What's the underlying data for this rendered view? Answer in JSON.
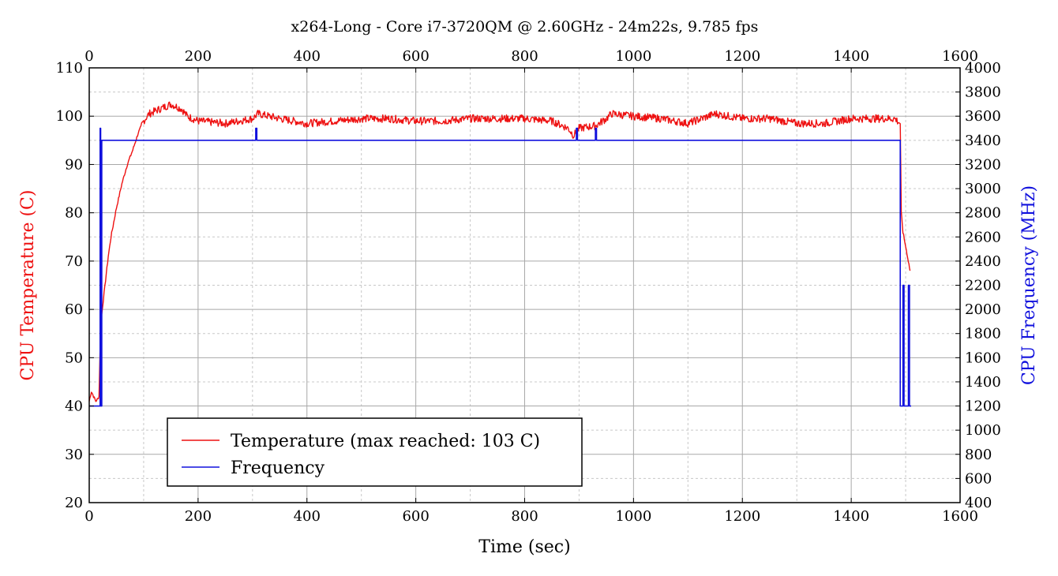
{
  "chart_data": {
    "type": "line",
    "title": "x264-Long - Core i7-3720QM @ 2.60GHz - 24m22s, 9.785 fps",
    "xlabel": "Time (sec)",
    "ylabel_left": "CPU Temperature (C)",
    "ylabel_right": "CPU Frequency (MHz)",
    "xlim": [
      0,
      1600
    ],
    "ylim_left": [
      20,
      110
    ],
    "ylim_right": [
      400,
      4000
    ],
    "x_ticks": [
      "0",
      "200",
      "400",
      "600",
      "800",
      "1000",
      "1200",
      "1400",
      "1600"
    ],
    "y_left_ticks": [
      "20",
      "30",
      "40",
      "50",
      "60",
      "70",
      "80",
      "90",
      "100",
      "110"
    ],
    "y_right_ticks": [
      "400",
      "600",
      "800",
      "1000",
      "1200",
      "1400",
      "1600",
      "1800",
      "2000",
      "2200",
      "2400",
      "2600",
      "2800",
      "3000",
      "3200",
      "3400",
      "3600",
      "3800",
      "4000"
    ],
    "grid": true,
    "legend_position": "bottom-left",
    "colors": {
      "temperature": "#ee1111",
      "frequency": "#1111dd"
    },
    "series": [
      {
        "name": "Temperature (max reached: 103 C)",
        "axis": "left",
        "x": [
          0,
          4,
          8,
          12,
          16,
          18,
          20,
          22,
          26,
          30,
          35,
          40,
          50,
          60,
          70,
          80,
          90,
          100,
          110,
          120,
          130,
          140,
          150,
          160,
          170,
          180,
          200,
          250,
          300,
          310,
          350,
          400,
          450,
          500,
          550,
          600,
          650,
          700,
          750,
          800,
          850,
          880,
          890,
          900,
          930,
          950,
          960,
          1000,
          1050,
          1100,
          1150,
          1200,
          1250,
          1300,
          1350,
          1400,
          1450,
          1480,
          1490,
          1492,
          1495,
          1500,
          1505,
          1508
        ],
        "y": [
          41,
          43,
          42,
          41,
          41.5,
          42,
          52,
          58,
          62,
          66,
          71,
          75,
          81,
          86,
          90,
          93,
          96.5,
          99,
          100.5,
          101,
          101.5,
          102,
          102.5,
          102,
          101.5,
          100,
          99,
          98.5,
          99.5,
          100.5,
          99.5,
          98.5,
          99,
          99.5,
          99.5,
          99,
          99,
          99.5,
          99.5,
          99.5,
          99,
          97.5,
          96,
          97.5,
          98,
          99.5,
          100.5,
          100,
          99.5,
          98.5,
          100.5,
          99.5,
          99.5,
          98.5,
          98.5,
          99.5,
          99.5,
          99.5,
          98.5,
          80,
          76,
          73,
          70,
          68
        ]
      },
      {
        "name": "Frequency",
        "axis": "right",
        "x": [
          0,
          20,
          20,
          21,
          21,
          23,
          23,
          306,
          306,
          308,
          308,
          895,
          895,
          897,
          897,
          930,
          930,
          932,
          932,
          1490,
          1490,
          1495,
          1495,
          1497,
          1497,
          1505,
          1505,
          1507,
          1507,
          1510
        ],
        "y": [
          1200,
          1200,
          3500,
          3500,
          1200,
          1200,
          3400,
          3400,
          3500,
          3500,
          3400,
          3400,
          3500,
          3500,
          3400,
          3400,
          3500,
          3500,
          3400,
          3400,
          1200,
          1200,
          2200,
          2200,
          1200,
          1200,
          2200,
          2200,
          1200,
          1200
        ]
      }
    ]
  }
}
